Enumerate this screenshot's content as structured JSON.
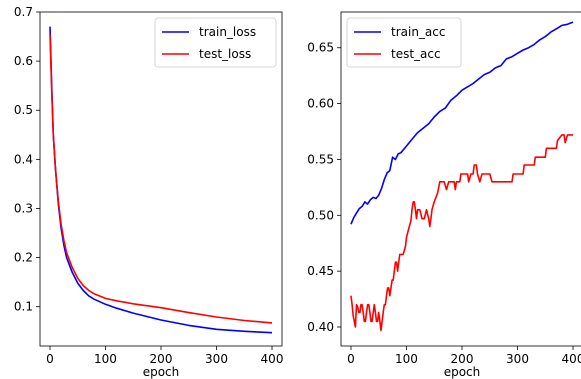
{
  "chart_data": [
    {
      "type": "line",
      "xlabel": "epoch",
      "ylabel": "",
      "xlim": [
        -18,
        418
      ],
      "ylim": [
        0.02,
        0.7
      ],
      "xticks": [
        0,
        100,
        200,
        300,
        400
      ],
      "yticks": [
        0.1,
        0.2,
        0.3,
        0.4,
        0.5,
        0.6,
        0.7
      ],
      "ytick_labels": [
        "0.1",
        "0.2",
        "0.3",
        "0.4",
        "0.5",
        "0.6",
        "0.7"
      ],
      "grid": false,
      "legend_position": "top-right",
      "series": [
        {
          "name": "train_loss",
          "color": "#0000ff",
          "points": [
            [
              0,
              0.67
            ],
            [
              3,
              0.55
            ],
            [
              6,
              0.45
            ],
            [
              10,
              0.38
            ],
            [
              15,
              0.31
            ],
            [
              20,
              0.26
            ],
            [
              25,
              0.225
            ],
            [
              30,
              0.2
            ],
            [
              40,
              0.17
            ],
            [
              50,
              0.148
            ],
            [
              60,
              0.133
            ],
            [
              70,
              0.122
            ],
            [
              80,
              0.115
            ],
            [
              100,
              0.105
            ],
            [
              120,
              0.097
            ],
            [
              150,
              0.087
            ],
            [
              200,
              0.073
            ],
            [
              250,
              0.062
            ],
            [
              300,
              0.054
            ],
            [
              350,
              0.05
            ],
            [
              400,
              0.047
            ]
          ]
        },
        {
          "name": "test_loss",
          "color": "#ff0000",
          "points": [
            [
              0,
              0.655
            ],
            [
              3,
              0.54
            ],
            [
              6,
              0.45
            ],
            [
              10,
              0.38
            ],
            [
              15,
              0.315
            ],
            [
              20,
              0.268
            ],
            [
              25,
              0.235
            ],
            [
              30,
              0.21
            ],
            [
              40,
              0.18
            ],
            [
              50,
              0.158
            ],
            [
              60,
              0.143
            ],
            [
              70,
              0.133
            ],
            [
              80,
              0.126
            ],
            [
              100,
              0.117
            ],
            [
              120,
              0.112
            ],
            [
              150,
              0.106
            ],
            [
              200,
              0.098
            ],
            [
              250,
              0.088
            ],
            [
              300,
              0.079
            ],
            [
              350,
              0.072
            ],
            [
              400,
              0.067
            ]
          ]
        }
      ]
    },
    {
      "type": "line",
      "xlabel": "epoch",
      "ylabel": "",
      "xlim": [
        -18,
        418
      ],
      "ylim": [
        0.383,
        0.682
      ],
      "xticks": [
        0,
        100,
        200,
        300,
        400
      ],
      "yticks": [
        0.4,
        0.45,
        0.5,
        0.55,
        0.6,
        0.65
      ],
      "ytick_labels": [
        "0.40",
        "0.45",
        "0.50",
        "0.55",
        "0.60",
        "0.65"
      ],
      "grid": false,
      "legend_position": "top-left",
      "series": [
        {
          "name": "train_acc",
          "color": "#0000ff",
          "points": [
            [
              0,
              0.492
            ],
            [
              5,
              0.498
            ],
            [
              10,
              0.502
            ],
            [
              15,
              0.506
            ],
            [
              20,
              0.508
            ],
            [
              25,
              0.512
            ],
            [
              30,
              0.51
            ],
            [
              35,
              0.514
            ],
            [
              40,
              0.516
            ],
            [
              45,
              0.515
            ],
            [
              50,
              0.518
            ],
            [
              55,
              0.524
            ],
            [
              60,
              0.532
            ],
            [
              65,
              0.538
            ],
            [
              70,
              0.54
            ],
            [
              75,
              0.552
            ],
            [
              80,
              0.55
            ],
            [
              85,
              0.555
            ],
            [
              90,
              0.556
            ],
            [
              100,
              0.562
            ],
            [
              110,
              0.568
            ],
            [
              120,
              0.574
            ],
            [
              130,
              0.578
            ],
            [
              140,
              0.582
            ],
            [
              150,
              0.588
            ],
            [
              160,
              0.593
            ],
            [
              170,
              0.596
            ],
            [
              180,
              0.603
            ],
            [
              190,
              0.607
            ],
            [
              200,
              0.612
            ],
            [
              210,
              0.615
            ],
            [
              220,
              0.618
            ],
            [
              230,
              0.622
            ],
            [
              240,
              0.626
            ],
            [
              250,
              0.628
            ],
            [
              260,
              0.632
            ],
            [
              270,
              0.634
            ],
            [
              280,
              0.64
            ],
            [
              290,
              0.642
            ],
            [
              300,
              0.645
            ],
            [
              310,
              0.648
            ],
            [
              320,
              0.65
            ],
            [
              330,
              0.653
            ],
            [
              340,
              0.657
            ],
            [
              350,
              0.66
            ],
            [
              360,
              0.664
            ],
            [
              370,
              0.667
            ],
            [
              380,
              0.67
            ],
            [
              390,
              0.671
            ],
            [
              400,
              0.673
            ]
          ]
        },
        {
          "name": "test_acc",
          "color": "#ff0000",
          "points": [
            [
              0,
              0.428
            ],
            [
              2,
              0.42
            ],
            [
              4,
              0.41
            ],
            [
              6,
              0.405
            ],
            [
              8,
              0.4
            ],
            [
              10,
              0.42
            ],
            [
              12,
              0.418
            ],
            [
              14,
              0.413
            ],
            [
              16,
              0.413
            ],
            [
              18,
              0.42
            ],
            [
              20,
              0.42
            ],
            [
              22,
              0.413
            ],
            [
              24,
              0.405
            ],
            [
              26,
              0.405
            ],
            [
              28,
              0.413
            ],
            [
              30,
              0.42
            ],
            [
              32,
              0.42
            ],
            [
              34,
              0.413
            ],
            [
              36,
              0.405
            ],
            [
              38,
              0.405
            ],
            [
              40,
              0.413
            ],
            [
              42,
              0.42
            ],
            [
              44,
              0.413
            ],
            [
              46,
              0.405
            ],
            [
              48,
              0.405
            ],
            [
              50,
              0.413
            ],
            [
              52,
              0.405
            ],
            [
              54,
              0.397
            ],
            [
              56,
              0.405
            ],
            [
              58,
              0.413
            ],
            [
              60,
              0.42
            ],
            [
              62,
              0.42
            ],
            [
              64,
              0.428
            ],
            [
              66,
              0.435
            ],
            [
              68,
              0.435
            ],
            [
              70,
              0.428
            ],
            [
              72,
              0.435
            ],
            [
              74,
              0.442
            ],
            [
              76,
              0.442
            ],
            [
              78,
              0.45
            ],
            [
              80,
              0.458
            ],
            [
              82,
              0.458
            ],
            [
              84,
              0.45
            ],
            [
              86,
              0.458
            ],
            [
              88,
              0.465
            ],
            [
              90,
              0.465
            ],
            [
              94,
              0.465
            ],
            [
              98,
              0.472
            ],
            [
              100,
              0.48
            ],
            [
              104,
              0.488
            ],
            [
              108,
              0.495
            ],
            [
              110,
              0.505
            ],
            [
              112,
              0.512
            ],
            [
              114,
              0.512
            ],
            [
              116,
              0.505
            ],
            [
              118,
              0.497
            ],
            [
              120,
              0.505
            ],
            [
              124,
              0.505
            ],
            [
              128,
              0.497
            ],
            [
              132,
              0.497
            ],
            [
              136,
              0.505
            ],
            [
              140,
              0.497
            ],
            [
              142,
              0.49
            ],
            [
              144,
              0.497
            ],
            [
              146,
              0.505
            ],
            [
              150,
              0.512
            ],
            [
              156,
              0.52
            ],
            [
              160,
              0.53
            ],
            [
              168,
              0.53
            ],
            [
              172,
              0.523
            ],
            [
              176,
              0.53
            ],
            [
              182,
              0.53
            ],
            [
              186,
              0.53
            ],
            [
              188,
              0.523
            ],
            [
              190,
              0.53
            ],
            [
              196,
              0.53
            ],
            [
              198,
              0.537
            ],
            [
              210,
              0.537
            ],
            [
              212,
              0.53
            ],
            [
              216,
              0.537
            ],
            [
              220,
              0.537
            ],
            [
              222,
              0.545
            ],
            [
              226,
              0.545
            ],
            [
              228,
              0.537
            ],
            [
              232,
              0.53
            ],
            [
              236,
              0.537
            ],
            [
              250,
              0.537
            ],
            [
              254,
              0.53
            ],
            [
              290,
              0.53
            ],
            [
              292,
              0.537
            ],
            [
              310,
              0.537
            ],
            [
              312,
              0.545
            ],
            [
              330,
              0.545
            ],
            [
              332,
              0.552
            ],
            [
              350,
              0.552
            ],
            [
              352,
              0.56
            ],
            [
              370,
              0.56
            ],
            [
              372,
              0.567
            ],
            [
              380,
              0.572
            ],
            [
              384,
              0.572
            ],
            [
              386,
              0.565
            ],
            [
              390,
              0.572
            ],
            [
              400,
              0.572
            ]
          ]
        }
      ]
    }
  ]
}
